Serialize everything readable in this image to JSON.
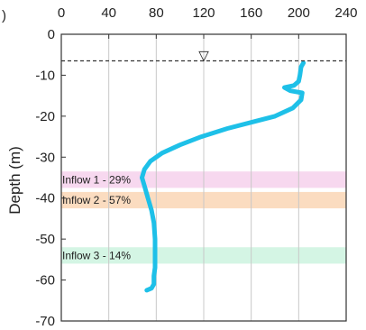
{
  "chart_data": {
    "type": "line",
    "ylabel": "Depth (m)",
    "xlabel": "",
    "xlim": [
      0,
      240
    ],
    "ylim": [
      -70,
      0
    ],
    "xticks": [
      0,
      40,
      80,
      120,
      160,
      200,
      240
    ],
    "yticks": [
      0,
      -10,
      -20,
      -30,
      -40,
      -50,
      -60,
      -70
    ],
    "x_axis_position": "top",
    "grid": "vertical",
    "left_edge_fragment": ")",
    "water_level": {
      "depth": -6.5,
      "marker": "▽",
      "marker_x": 120,
      "color": "#333333"
    },
    "bands": [
      {
        "label": "Inflow 1 - 29%",
        "depth_top": -33.5,
        "depth_bottom": -37.5,
        "color": "#f7d8ef"
      },
      {
        "label": "Inflow 2 - 57%",
        "depth_top": -38.5,
        "depth_bottom": -42.5,
        "color": "#fbdcc0"
      },
      {
        "label": "Inflow 3 - 14%",
        "depth_top": -52,
        "depth_bottom": -56,
        "color": "#d4f5e4"
      }
    ],
    "series": [
      {
        "color": "#1ec0e8",
        "points": [
          [
            204,
            -7
          ],
          [
            202,
            -8
          ],
          [
            201,
            -10
          ],
          [
            200,
            -11.5
          ],
          [
            196,
            -12.5
          ],
          [
            188,
            -13
          ],
          [
            193,
            -13.8
          ],
          [
            203,
            -14.3
          ],
          [
            202,
            -16
          ],
          [
            195,
            -18
          ],
          [
            180,
            -20
          ],
          [
            160,
            -21.5
          ],
          [
            140,
            -23
          ],
          [
            118,
            -25
          ],
          [
            100,
            -27
          ],
          [
            85,
            -29
          ],
          [
            75,
            -31
          ],
          [
            70,
            -33
          ],
          [
            68,
            -35
          ],
          [
            70,
            -37
          ],
          [
            72,
            -39
          ],
          [
            73,
            -40
          ],
          [
            76,
            -43
          ],
          [
            78,
            -46
          ],
          [
            79,
            -50
          ],
          [
            79,
            -54
          ],
          [
            79,
            -57
          ],
          [
            78,
            -59
          ],
          [
            78,
            -61
          ],
          [
            76,
            -62
          ],
          [
            72,
            -62.5
          ]
        ]
      }
    ]
  }
}
